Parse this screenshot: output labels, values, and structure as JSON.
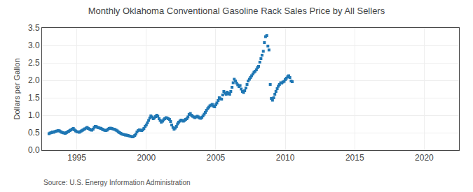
{
  "chart_data": {
    "type": "scatter",
    "title": "Monthly Oklahoma Conventional Gasoline Rack Sales Price by All Sellers",
    "ylabel": "Dollars per Gallon",
    "annotations": [
      "Source: U.S. Energy Information Administration"
    ],
    "marker": "square",
    "grid": true,
    "xlim": [
      1992.5,
      2022.5
    ],
    "xticks": [
      1995,
      2000,
      2005,
      2010,
      2015,
      2020
    ],
    "ylim": [
      0.0,
      3.5
    ],
    "yticks": [
      {
        "value": 0.0,
        "label": "0.0"
      },
      0.5,
      {
        "value": 1.0,
        "label": "1.0"
      },
      1.5,
      {
        "value": 2.0,
        "label": "2.0"
      },
      2.5,
      {
        "value": 3.0,
        "label": "3.0"
      },
      3.5
    ],
    "x": [
      1993.0,
      1993.08,
      1993.17,
      1993.25,
      1993.33,
      1993.42,
      1993.5,
      1993.58,
      1993.67,
      1993.75,
      1993.83,
      1993.92,
      1994.0,
      1994.08,
      1994.17,
      1994.25,
      1994.33,
      1994.42,
      1994.5,
      1994.58,
      1994.67,
      1994.75,
      1994.83,
      1994.92,
      1995.0,
      1995.08,
      1995.17,
      1995.25,
      1995.33,
      1995.42,
      1995.5,
      1995.58,
      1995.67,
      1995.75,
      1995.83,
      1995.92,
      1996.0,
      1996.08,
      1996.17,
      1996.25,
      1996.33,
      1996.42,
      1996.5,
      1996.58,
      1996.67,
      1996.75,
      1996.83,
      1996.92,
      1997.0,
      1997.08,
      1997.17,
      1997.25,
      1997.33,
      1997.42,
      1997.5,
      1997.58,
      1997.67,
      1997.75,
      1997.83,
      1997.92,
      1998.0,
      1998.08,
      1998.17,
      1998.25,
      1998.33,
      1998.42,
      1998.5,
      1998.58,
      1998.67,
      1998.75,
      1998.83,
      1998.92,
      1999.0,
      1999.08,
      1999.17,
      1999.25,
      1999.33,
      1999.42,
      1999.5,
      1999.58,
      1999.67,
      1999.75,
      1999.83,
      1999.92,
      2000.0,
      2000.08,
      2000.17,
      2000.25,
      2000.33,
      2000.42,
      2000.5,
      2000.58,
      2000.67,
      2000.75,
      2000.83,
      2000.92,
      2001.0,
      2001.08,
      2001.17,
      2001.25,
      2001.33,
      2001.42,
      2001.5,
      2001.58,
      2001.67,
      2001.75,
      2001.83,
      2001.92,
      2002.0,
      2002.08,
      2002.17,
      2002.25,
      2002.33,
      2002.42,
      2002.5,
      2002.58,
      2002.67,
      2002.75,
      2002.83,
      2002.92,
      2003.0,
      2003.08,
      2003.17,
      2003.25,
      2003.33,
      2003.42,
      2003.5,
      2003.58,
      2003.67,
      2003.75,
      2003.83,
      2003.92,
      2004.0,
      2004.08,
      2004.17,
      2004.25,
      2004.33,
      2004.42,
      2004.5,
      2004.58,
      2004.67,
      2004.75,
      2004.83,
      2004.92,
      2005.0,
      2005.08,
      2005.17,
      2005.25,
      2005.33,
      2005.42,
      2005.5,
      2005.58,
      2005.67,
      2005.75,
      2005.83,
      2005.92,
      2006.0,
      2006.08,
      2006.17,
      2006.25,
      2006.33,
      2006.42,
      2006.5,
      2006.58,
      2006.67,
      2006.75,
      2006.83,
      2006.92,
      2007.0,
      2007.08,
      2007.17,
      2007.25,
      2007.33,
      2007.42,
      2007.5,
      2007.58,
      2007.67,
      2007.75,
      2007.83,
      2007.92,
      2008.0,
      2008.08,
      2008.17,
      2008.25,
      2008.33,
      2008.42,
      2008.5,
      2008.58,
      2008.67,
      2008.75,
      2008.83,
      2008.92,
      2009.0,
      2009.08,
      2009.17,
      2009.25,
      2009.33,
      2009.42,
      2009.5,
      2009.58,
      2009.67,
      2009.75,
      2009.83,
      2009.92,
      2010.0,
      2010.08,
      2010.17,
      2010.25,
      2010.33,
      2010.42,
      2010.5
    ],
    "values": [
      0.47,
      0.49,
      0.5,
      0.52,
      0.51,
      0.53,
      0.54,
      0.55,
      0.56,
      0.55,
      0.53,
      0.51,
      0.5,
      0.49,
      0.48,
      0.5,
      0.52,
      0.54,
      0.56,
      0.58,
      0.6,
      0.62,
      0.58,
      0.55,
      0.53,
      0.52,
      0.51,
      0.53,
      0.55,
      0.57,
      0.59,
      0.61,
      0.63,
      0.65,
      0.62,
      0.6,
      0.58,
      0.57,
      0.6,
      0.65,
      0.68,
      0.67,
      0.65,
      0.64,
      0.63,
      0.62,
      0.6,
      0.58,
      0.57,
      0.56,
      0.57,
      0.6,
      0.62,
      0.63,
      0.62,
      0.61,
      0.6,
      0.59,
      0.57,
      0.55,
      0.52,
      0.5,
      0.48,
      0.46,
      0.45,
      0.44,
      0.43,
      0.43,
      0.42,
      0.41,
      0.4,
      0.39,
      0.38,
      0.39,
      0.42,
      0.46,
      0.52,
      0.56,
      0.58,
      0.57,
      0.56,
      0.58,
      0.62,
      0.68,
      0.72,
      0.78,
      0.85,
      0.92,
      0.98,
      0.95,
      0.9,
      0.92,
      0.96,
      1.0,
      0.97,
      0.9,
      0.85,
      0.8,
      0.83,
      0.87,
      0.9,
      0.93,
      0.92,
      0.9,
      0.88,
      0.82,
      0.72,
      0.65,
      0.6,
      0.63,
      0.68,
      0.75,
      0.8,
      0.83,
      0.86,
      0.85,
      0.83,
      0.85,
      0.88,
      0.9,
      0.95,
      1.02,
      1.05,
      1.0,
      0.97,
      0.95,
      0.93,
      0.95,
      0.97,
      0.95,
      0.92,
      0.91,
      0.94,
      0.98,
      1.03,
      1.08,
      1.14,
      1.19,
      1.23,
      1.27,
      1.29,
      1.31,
      1.26,
      1.24,
      1.3,
      1.35,
      1.42,
      1.5,
      1.47,
      1.46,
      1.58,
      1.68,
      1.63,
      1.6,
      1.66,
      1.62,
      1.6,
      1.68,
      1.8,
      1.93,
      2.03,
      1.98,
      1.92,
      1.87,
      1.82,
      1.85,
      1.75,
      1.68,
      1.65,
      1.7,
      1.78,
      1.88,
      1.98,
      2.03,
      2.08,
      2.13,
      2.18,
      2.23,
      2.26,
      2.3,
      2.36,
      2.4,
      2.52,
      2.62,
      2.72,
      2.83,
      3.08,
      3.25,
      3.28,
      2.98,
      2.87,
      1.88,
      1.48,
      1.43,
      1.5,
      1.6,
      1.68,
      1.76,
      1.83,
      1.88,
      1.93,
      1.92,
      1.95,
      1.97,
      2.02,
      2.06,
      2.1,
      2.13,
      2.08,
      1.98,
      1.96
    ]
  }
}
